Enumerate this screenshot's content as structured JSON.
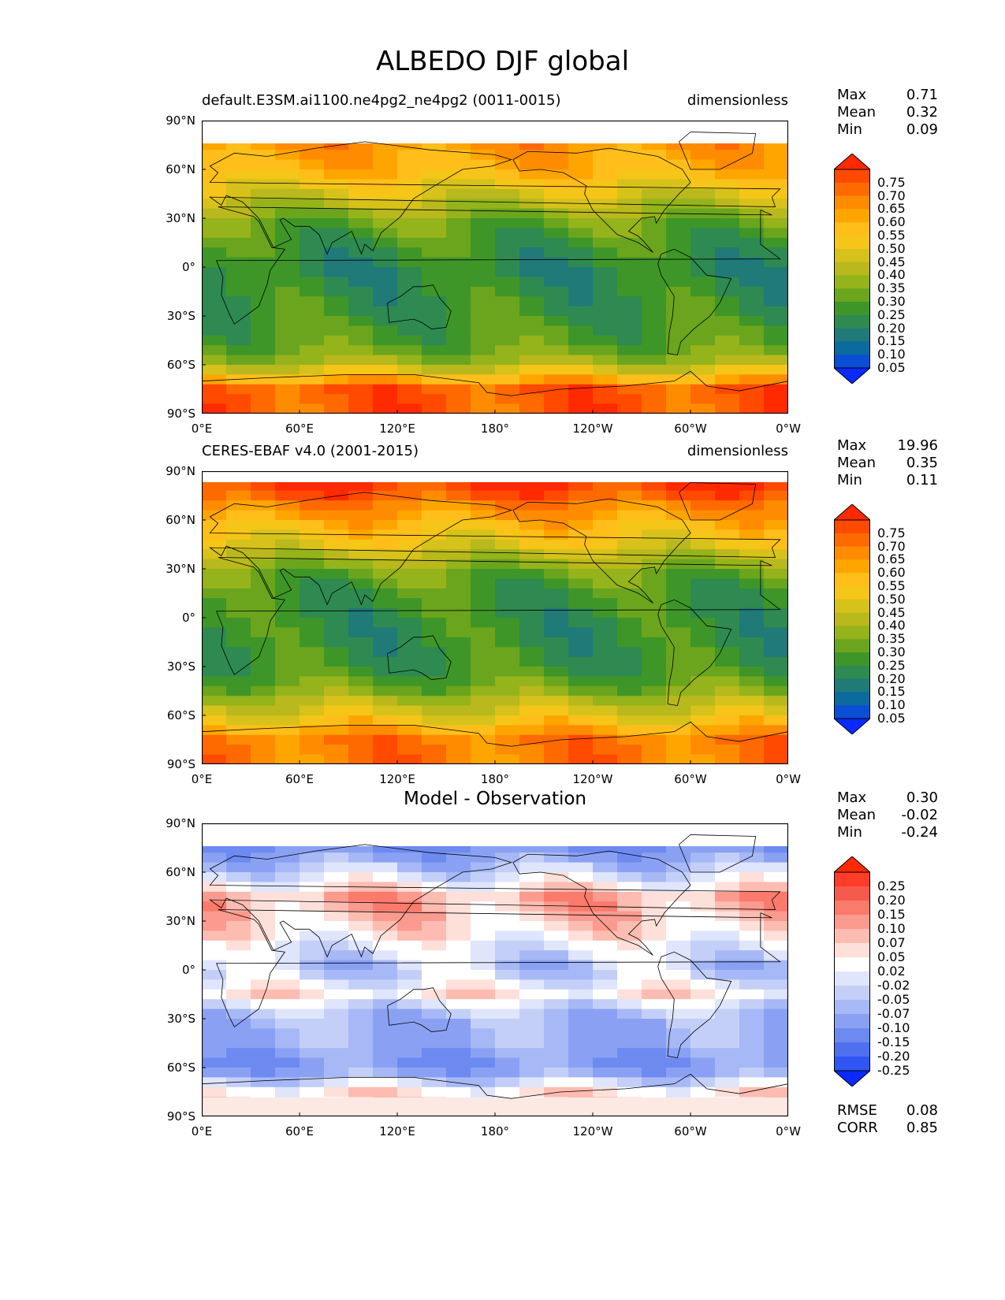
{
  "title": "ALBEDO DJF global",
  "x_ticks": [
    "0°E",
    "60°E",
    "120°E",
    "180°",
    "120°W",
    "60°W",
    "0°W"
  ],
  "y_ticks": [
    "90°N",
    "60°N",
    "30°N",
    "0°",
    "30°S",
    "60°S",
    "90°S"
  ],
  "panels": [
    {
      "title_left": "default.E3SM.ai1100.ne4pg2_ne4pg2 (0011-0015)",
      "title_right": "dimensionless",
      "title_center": "",
      "stats": [
        {
          "label": "Max",
          "value": "0.71"
        },
        {
          "label": "Mean",
          "value": "0.32"
        },
        {
          "label": "Min",
          "value": "0.09"
        }
      ],
      "colorbar_ticks": [
        "0.75",
        "0.70",
        "0.65",
        "0.60",
        "0.55",
        "0.50",
        "0.45",
        "0.40",
        "0.35",
        "0.30",
        "0.25",
        "0.20",
        "0.15",
        "0.10",
        "0.05"
      ],
      "colorbar_colors": [
        "#ff2a00",
        "#ff4a00",
        "#ff6a00",
        "#ff8c00",
        "#ffa500",
        "#ffbe1a",
        "#f5c518",
        "#d6c21a",
        "#b9b81c",
        "#95b31a",
        "#6aa51d",
        "#3f9628",
        "#2e8a50",
        "#1f7a78",
        "#0b6b9e",
        "#0a4ed6",
        "#0a2aff"
      ],
      "extra_stats": [],
      "chart_data": {
        "type": "heatmap",
        "xlim": [
          0,
          360
        ],
        "ylim": [
          -90,
          90
        ],
        "unit": "dimensionless",
        "zonal_profile": [
          {
            "lat": 75,
            "value": 0.6
          },
          {
            "lat": 60,
            "value": 0.55
          },
          {
            "lat": 45,
            "value": 0.42
          },
          {
            "lat": 30,
            "value": 0.3
          },
          {
            "lat": 15,
            "value": 0.22
          },
          {
            "lat": 0,
            "value": 0.18
          },
          {
            "lat": -15,
            "value": 0.2
          },
          {
            "lat": -30,
            "value": 0.22
          },
          {
            "lat": -45,
            "value": 0.25
          },
          {
            "lat": -60,
            "value": 0.35
          },
          {
            "lat": -75,
            "value": 0.7
          },
          {
            "lat": -90,
            "value": 0.7
          }
        ]
      }
    },
    {
      "title_left": "CERES-EBAF v4.0 (2001-2015)",
      "title_right": "dimensionless",
      "title_center": "",
      "stats": [
        {
          "label": "Max",
          "value": "19.96"
        },
        {
          "label": "Mean",
          "value": "0.35"
        },
        {
          "label": "Min",
          "value": "0.11"
        }
      ],
      "colorbar_ticks": [
        "0.75",
        "0.70",
        "0.65",
        "0.60",
        "0.55",
        "0.50",
        "0.45",
        "0.40",
        "0.35",
        "0.30",
        "0.25",
        "0.20",
        "0.15",
        "0.10",
        "0.05"
      ],
      "colorbar_colors": [
        "#ff2a00",
        "#ff4a00",
        "#ff6a00",
        "#ff8c00",
        "#ffa500",
        "#ffbe1a",
        "#f5c518",
        "#d6c21a",
        "#b9b81c",
        "#95b31a",
        "#6aa51d",
        "#3f9628",
        "#2e8a50",
        "#1f7a78",
        "#0b6b9e",
        "#0a4ed6",
        "#0a2aff"
      ],
      "extra_stats": [],
      "chart_data": {
        "type": "heatmap",
        "xlim": [
          0,
          360
        ],
        "ylim": [
          -90,
          90
        ],
        "unit": "dimensionless",
        "zonal_profile": [
          {
            "lat": 80,
            "value": 0.75
          },
          {
            "lat": 65,
            "value": 0.6
          },
          {
            "lat": 45,
            "value": 0.45
          },
          {
            "lat": 30,
            "value": 0.3
          },
          {
            "lat": 15,
            "value": 0.22
          },
          {
            "lat": 0,
            "value": 0.2
          },
          {
            "lat": -15,
            "value": 0.2
          },
          {
            "lat": -30,
            "value": 0.22
          },
          {
            "lat": -45,
            "value": 0.3
          },
          {
            "lat": -60,
            "value": 0.45
          },
          {
            "lat": -75,
            "value": 0.65
          },
          {
            "lat": -90,
            "value": 0.65
          }
        ]
      }
    },
    {
      "title_left": "",
      "title_right": "",
      "title_center": "Model - Observation",
      "stats": [
        {
          "label": "Max",
          "value": "0.30"
        },
        {
          "label": "Mean",
          "value": "-0.02"
        },
        {
          "label": "Min",
          "value": "-0.24"
        }
      ],
      "colorbar_ticks": [
        "0.25",
        "0.20",
        "0.15",
        "0.10",
        "0.07",
        "0.05",
        "0.02",
        "-0.02",
        "-0.05",
        "-0.07",
        "-0.10",
        "-0.15",
        "-0.20",
        "-0.25"
      ],
      "colorbar_colors": [
        "#ff2a00",
        "#ff3c28",
        "#f65a4c",
        "#fa7a6c",
        "#fb9a8e",
        "#fcbcb2",
        "#fde0da",
        "#ffffff",
        "#dfe5fb",
        "#c4cff8",
        "#a7b8f6",
        "#8aa1f3",
        "#6d8af1",
        "#4f70ee",
        "#2f55f3",
        "#0a2aff"
      ],
      "extra_stats": [
        {
          "label": "RMSE",
          "value": "0.08"
        },
        {
          "label": "CORR",
          "value": "0.85"
        }
      ],
      "chart_data": {
        "type": "heatmap",
        "xlim": [
          0,
          360
        ],
        "ylim": [
          -90,
          90
        ],
        "unit": "dimensionless",
        "zonal_profile": [
          {
            "lat": 75,
            "value": -0.15
          },
          {
            "lat": 60,
            "value": -0.05
          },
          {
            "lat": 45,
            "value": 0.07
          },
          {
            "lat": 30,
            "value": 0.05
          },
          {
            "lat": 15,
            "value": -0.02
          },
          {
            "lat": 0,
            "value": -0.07
          },
          {
            "lat": -15,
            "value": 0.02
          },
          {
            "lat": -30,
            "value": -0.1
          },
          {
            "lat": -45,
            "value": -0.1
          },
          {
            "lat": -60,
            "value": -0.15
          },
          {
            "lat": -75,
            "value": 0.02
          }
        ]
      }
    }
  ]
}
